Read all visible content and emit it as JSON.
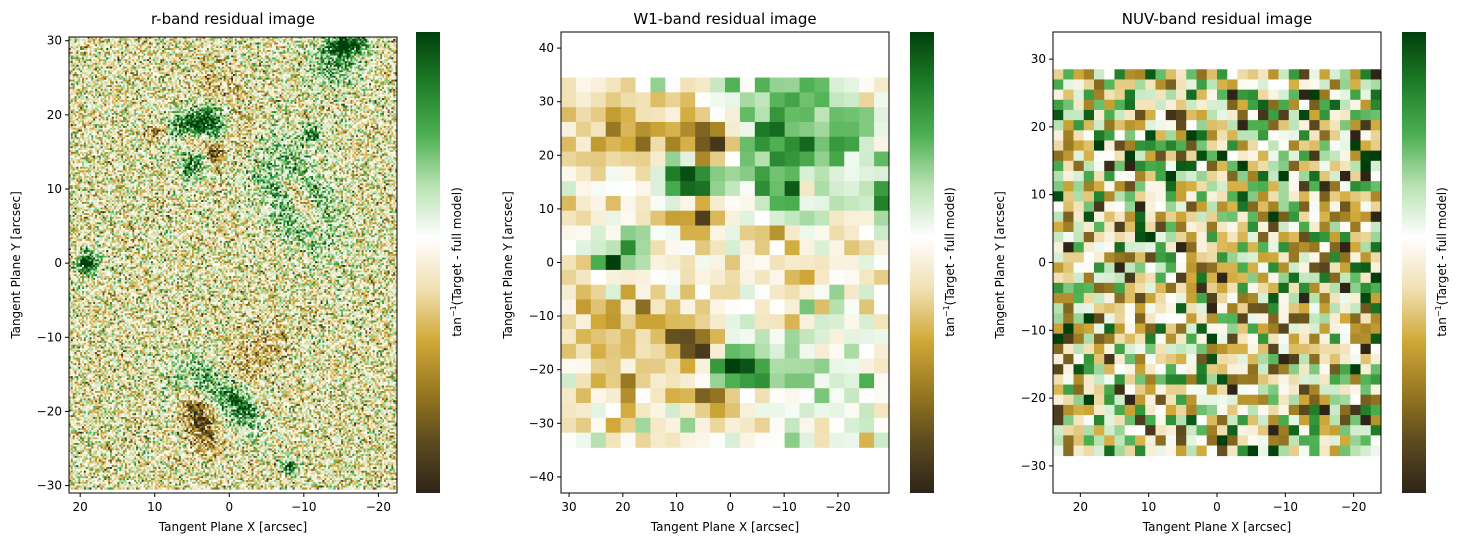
{
  "colorbar_label": {
    "func": "tan",
    "sup": "−1",
    "rest": "(Target - full model)"
  },
  "colormap": [
    "#2e2418",
    "#5d4a1f",
    "#9a7a22",
    "#d2aa3a",
    "#f1e1b4",
    "#ffffff",
    "#b8e2b2",
    "#4caf50",
    "#1f7d28",
    "#003f0c"
  ],
  "chart_data": [
    {
      "type": "heatmap",
      "title": "r-band residual image",
      "xlabel": "Tangent Plane X [arcsec]",
      "ylabel": "Tangent Plane Y [arcsec]",
      "xlim": [
        21.5,
        -22.5
      ],
      "ylim": [
        -31,
        30.5
      ],
      "xticks": [
        20,
        10,
        0,
        -10,
        -20
      ],
      "xtick_labels": [
        "20",
        "10",
        "0",
        "−10",
        "−20"
      ],
      "yticks": [
        -30,
        -20,
        -10,
        0,
        10,
        20,
        30
      ],
      "ytick_labels": [
        "−30",
        "−20",
        "−10",
        "0",
        "10",
        "20",
        "30"
      ],
      "extent": [
        21.5,
        -22.5,
        -30.5,
        30.5
      ],
      "grid_cols": 176,
      "grid_rows": 244,
      "noise_amplitude": 0.85,
      "features": [
        {
          "x": 6,
          "y": 18.5,
          "sx": 3.5,
          "sy": 1.4,
          "rot": -20,
          "a": 1.2
        },
        {
          "x": 9.5,
          "y": 17.5,
          "sx": 1.3,
          "sy": 0.9,
          "rot": 0,
          "a": -1.5
        },
        {
          "x": 4.5,
          "y": 16.5,
          "sx": 1.3,
          "sy": 0.9,
          "rot": 0,
          "a": -1.5
        },
        {
          "x": 3,
          "y": 18,
          "sx": 1.6,
          "sy": 2.6,
          "rot": 30,
          "a": 1.2
        },
        {
          "x": 2,
          "y": 15,
          "sx": 1.0,
          "sy": 1.0,
          "rot": 0,
          "a": -1.5
        },
        {
          "x": 5,
          "y": 13,
          "sx": 1.3,
          "sy": 1.3,
          "rot": 0,
          "a": 1.0
        },
        {
          "x": 0,
          "y": 21,
          "sx": 4,
          "sy": 2.0,
          "rot": 60,
          "a": -0.55
        },
        {
          "x": -9,
          "y": 9,
          "sx": 2.8,
          "sy": 5.5,
          "rot": -30,
          "a": 1.3
        },
        {
          "x": -9.5,
          "y": 8.5,
          "sx": 1.1,
          "sy": 3.0,
          "rot": -30,
          "a": -1.6
        },
        {
          "x": -11,
          "y": 17.5,
          "sx": 0.9,
          "sy": 0.9,
          "rot": 0,
          "a": 1.3
        },
        {
          "x": -14,
          "y": 27,
          "sx": 2.0,
          "sy": 2.5,
          "rot": 0,
          "a": 1.0
        },
        {
          "x": -16,
          "y": 29.5,
          "sx": 1.8,
          "sy": 1.0,
          "rot": 0,
          "a": 1.6
        },
        {
          "x": 19,
          "y": 0,
          "sx": 1.0,
          "sy": 1.0,
          "rot": 0,
          "a": 2.0
        },
        {
          "x": 3,
          "y": -17,
          "sx": 3.5,
          "sy": 2.5,
          "rot": 30,
          "a": 1.1
        },
        {
          "x": 4,
          "y": -20.5,
          "sx": 1.6,
          "sy": 2.8,
          "rot": -20,
          "a": -1.6
        },
        {
          "x": -2,
          "y": -20,
          "sx": 2.5,
          "sy": 1.2,
          "rot": 60,
          "a": 1.1
        },
        {
          "x": -3,
          "y": -13,
          "sx": 4,
          "sy": 2.0,
          "rot": -50,
          "a": -0.6
        },
        {
          "x": -8,
          "y": -27.5,
          "sx": 0.8,
          "sy": 0.8,
          "rot": 0,
          "a": 1.3
        }
      ],
      "colorbar": true
    },
    {
      "type": "heatmap",
      "title": "W1-band residual image",
      "xlabel": "Tangent Plane X [arcsec]",
      "ylabel": "Tangent Plane Y [arcsec]",
      "xlim": [
        31.5,
        -29.5
      ],
      "ylim": [
        -43,
        43
      ],
      "xticks": [
        30,
        20,
        10,
        0,
        -10,
        -20
      ],
      "xtick_labels": [
        "30",
        "20",
        "10",
        "0",
        "−10",
        "−20"
      ],
      "yticks": [
        -40,
        -30,
        -20,
        -10,
        0,
        10,
        20,
        30,
        40
      ],
      "ytick_labels": [
        "−40",
        "−30",
        "−20",
        "−10",
        "0",
        "10",
        "20",
        "30",
        "40"
      ],
      "extent": [
        31.5,
        -29.5,
        -34.5,
        34.5
      ],
      "grid_cols": 22,
      "grid_rows": 25,
      "noise_amplitude": 0.4,
      "features": [
        {
          "x": 7,
          "y": 15,
          "sx": 4,
          "sy": 3,
          "rot": 0,
          "a": 1.8
        },
        {
          "x": 5,
          "y": 9,
          "sx": 3,
          "sy": 2.5,
          "rot": 0,
          "a": -1.8
        },
        {
          "x": 3,
          "y": 22,
          "sx": 4,
          "sy": 3,
          "rot": 0,
          "a": -1.4
        },
        {
          "x": -8,
          "y": 20,
          "sx": 6,
          "sy": 10,
          "rot": 0,
          "a": 1.0
        },
        {
          "x": -20,
          "y": 25,
          "sx": 6,
          "sy": 8,
          "rot": 0,
          "a": 0.6
        },
        {
          "x": -29,
          "y": 12,
          "sx": 2,
          "sy": 3,
          "rot": 0,
          "a": 1.3
        },
        {
          "x": -8,
          "y": 5,
          "sx": 3,
          "sy": 2,
          "rot": 0,
          "a": -1.0
        },
        {
          "x": 20,
          "y": 24,
          "sx": 8,
          "sy": 4,
          "rot": 0,
          "a": -0.6
        },
        {
          "x": 20,
          "y": 1,
          "sx": 4,
          "sy": 3,
          "rot": 0,
          "a": 1.1
        },
        {
          "x": 0,
          "y": -20,
          "sx": 4,
          "sy": 3,
          "rot": 0,
          "a": 1.6
        },
        {
          "x": 6,
          "y": -16,
          "sx": 3,
          "sy": 3,
          "rot": 0,
          "a": -1.3
        },
        {
          "x": 2,
          "y": -25,
          "sx": 4,
          "sy": 2.5,
          "rot": 0,
          "a": -1.2
        },
        {
          "x": 20,
          "y": -12,
          "sx": 8,
          "sy": 8,
          "rot": 0,
          "a": -0.45
        },
        {
          "x": -15,
          "y": -22,
          "sx": 10,
          "sy": 10,
          "rot": 0,
          "a": 0.4
        }
      ],
      "colorbar": true
    },
    {
      "type": "heatmap",
      "title": "NUV-band residual image",
      "xlabel": "Tangent Plane X [arcsec]",
      "ylabel": "Tangent Plane Y [arcsec]",
      "xlim": [
        24,
        -24
      ],
      "ylim": [
        -34,
        34
      ],
      "xticks": [
        20,
        10,
        0,
        -10,
        -20
      ],
      "xtick_labels": [
        "20",
        "10",
        "0",
        "−10",
        "−20"
      ],
      "yticks": [
        -30,
        -20,
        -10,
        0,
        10,
        20,
        30
      ],
      "ytick_labels": [
        "−30",
        "−20",
        "−10",
        "0",
        "10",
        "20",
        "30"
      ],
      "extent": [
        24,
        -24,
        -28.5,
        28.5
      ],
      "grid_cols": 32,
      "grid_rows": 38,
      "noise_amplitude": 1.25,
      "features": [
        {
          "x": 3,
          "y": 14,
          "sx": 4,
          "sy": 4,
          "rot": 0,
          "a": 0.6
        }
      ],
      "colorbar": true
    }
  ]
}
